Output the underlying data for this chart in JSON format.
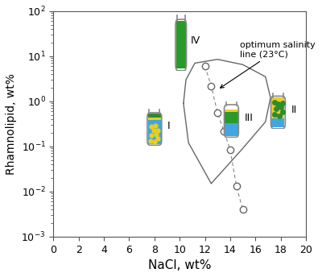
{
  "xlabel": "NaCl, wt%",
  "ylabel": "Rhamnolipid, wt%",
  "xlim": [
    0,
    20
  ],
  "ylim_log": [
    0.001,
    100
  ],
  "background_color": "#ffffff",
  "optimum_salinity_circles_x": [
    12.0,
    12.5,
    13.0,
    13.5,
    14.0,
    14.5,
    15.0
  ],
  "optimum_salinity_circles_y": [
    6.0,
    2.2,
    0.55,
    0.22,
    0.085,
    0.013,
    0.004
  ],
  "microemulsion_region_x": [
    10.3,
    10.5,
    11.2,
    13.0,
    15.0,
    16.8,
    17.2,
    16.8,
    15.0,
    12.5,
    10.7,
    10.3
  ],
  "microemulsion_region_y": [
    0.9,
    3.0,
    7.0,
    8.5,
    6.5,
    3.5,
    1.2,
    0.35,
    0.09,
    0.015,
    0.12,
    0.9
  ],
  "annotation_text": "optimum salinity\nline (23°C)",
  "color_blue": "#42a5e0",
  "color_green": "#2e8b2e",
  "color_yellow": "#e8d020",
  "color_green_hatched": "#2a9a2a",
  "color_tube_outline": "#888888",
  "tube_I_x": 8.0,
  "tube_I_y_center": 0.28,
  "tube_II_x": 17.8,
  "tube_II_y_center": 0.65,
  "tube_III_x": 14.1,
  "tube_III_y_center": 0.42,
  "tube_IV_x": 10.1,
  "tube_IV_y_center": 22.0
}
